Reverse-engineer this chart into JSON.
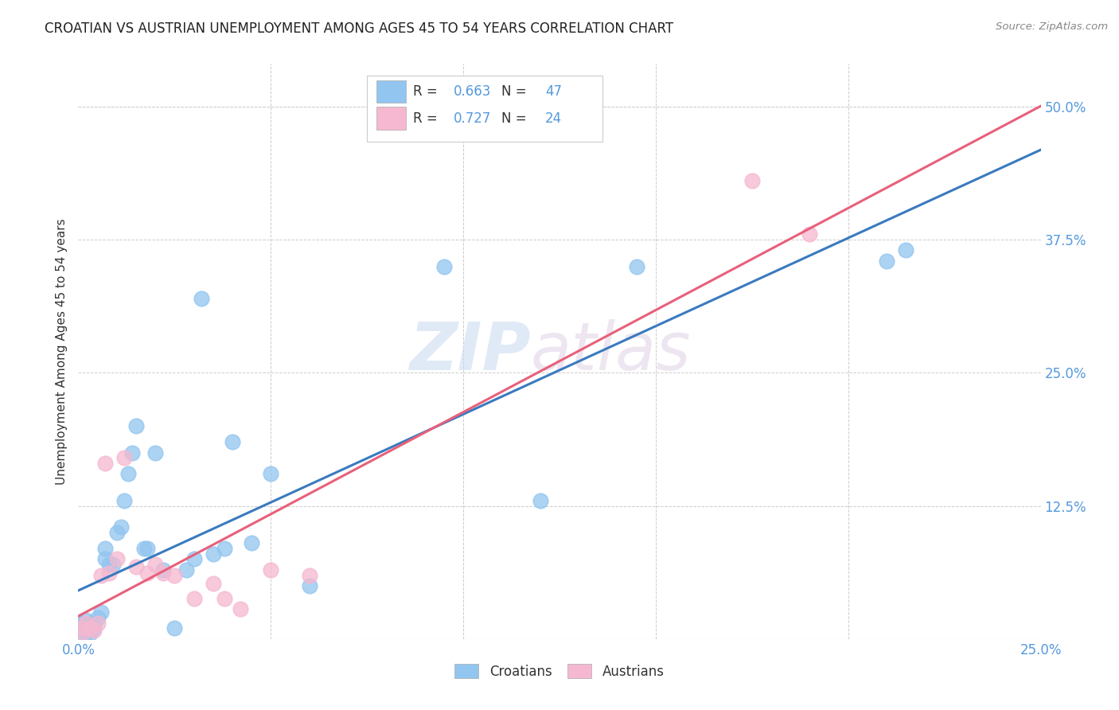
{
  "title": "CROATIAN VS AUSTRIAN UNEMPLOYMENT AMONG AGES 45 TO 54 YEARS CORRELATION CHART",
  "source": "Source: ZipAtlas.com",
  "ylabel": "Unemployment Among Ages 45 to 54 years",
  "xlim": [
    0.0,
    0.25
  ],
  "ylim": [
    0.0,
    0.54
  ],
  "ytick_positions": [
    0.0,
    0.125,
    0.25,
    0.375,
    0.5
  ],
  "yticklabels_right": [
    "",
    "12.5%",
    "25.0%",
    "37.5%",
    "50.0%"
  ],
  "xtick_positions": [
    0.0,
    0.05,
    0.1,
    0.15,
    0.2,
    0.25
  ],
  "xticklabels": [
    "0.0%",
    "",
    "",
    "",
    "",
    "25.0%"
  ],
  "croatian_color": "#92c5f0",
  "austrian_color": "#f5b8d0",
  "trendline_croatian_color": "#3a7abf",
  "trendline_austrian_color": "#e8607a",
  "watermark_top": "ZIP",
  "watermark_bottom": "atlas",
  "legend_R_croatian": "R = 0.663",
  "legend_N_croatian": "N = 47",
  "legend_R_austrian": "R = 0.727",
  "legend_N_austrian": "N = 24",
  "tick_color": "#5599dd",
  "text_color": "#333333",
  "grid_color": "#cccccc",
  "croatian_x": [
    0.001,
    0.001,
    0.001,
    0.001,
    0.001,
    0.002,
    0.002,
    0.002,
    0.002,
    0.002,
    0.003,
    0.003,
    0.003,
    0.003,
    0.004,
    0.004,
    0.005,
    0.006,
    0.007,
    0.007,
    0.008,
    0.009,
    0.01,
    0.011,
    0.012,
    0.013,
    0.014,
    0.015,
    0.017,
    0.018,
    0.02,
    0.022,
    0.025,
    0.028,
    0.03,
    0.032,
    0.035,
    0.038,
    0.04,
    0.045,
    0.05,
    0.06,
    0.095,
    0.12,
    0.145,
    0.21,
    0.215
  ],
  "croatian_y": [
    0.005,
    0.008,
    0.01,
    0.012,
    0.015,
    0.005,
    0.008,
    0.01,
    0.012,
    0.018,
    0.005,
    0.008,
    0.012,
    0.015,
    0.01,
    0.015,
    0.02,
    0.025,
    0.075,
    0.085,
    0.07,
    0.07,
    0.1,
    0.105,
    0.13,
    0.155,
    0.175,
    0.2,
    0.085,
    0.085,
    0.175,
    0.065,
    0.01,
    0.065,
    0.075,
    0.32,
    0.08,
    0.085,
    0.185,
    0.09,
    0.155,
    0.05,
    0.35,
    0.13,
    0.35,
    0.355,
    0.365
  ],
  "austrian_x": [
    0.001,
    0.001,
    0.002,
    0.003,
    0.004,
    0.005,
    0.006,
    0.007,
    0.008,
    0.01,
    0.012,
    0.015,
    0.018,
    0.02,
    0.022,
    0.025,
    0.03,
    0.035,
    0.038,
    0.042,
    0.05,
    0.06,
    0.175,
    0.19
  ],
  "austrian_y": [
    0.005,
    0.01,
    0.015,
    0.01,
    0.008,
    0.015,
    0.06,
    0.165,
    0.062,
    0.075,
    0.17,
    0.068,
    0.062,
    0.07,
    0.062,
    0.06,
    0.038,
    0.052,
    0.038,
    0.028,
    0.065,
    0.06,
    0.43,
    0.38
  ]
}
